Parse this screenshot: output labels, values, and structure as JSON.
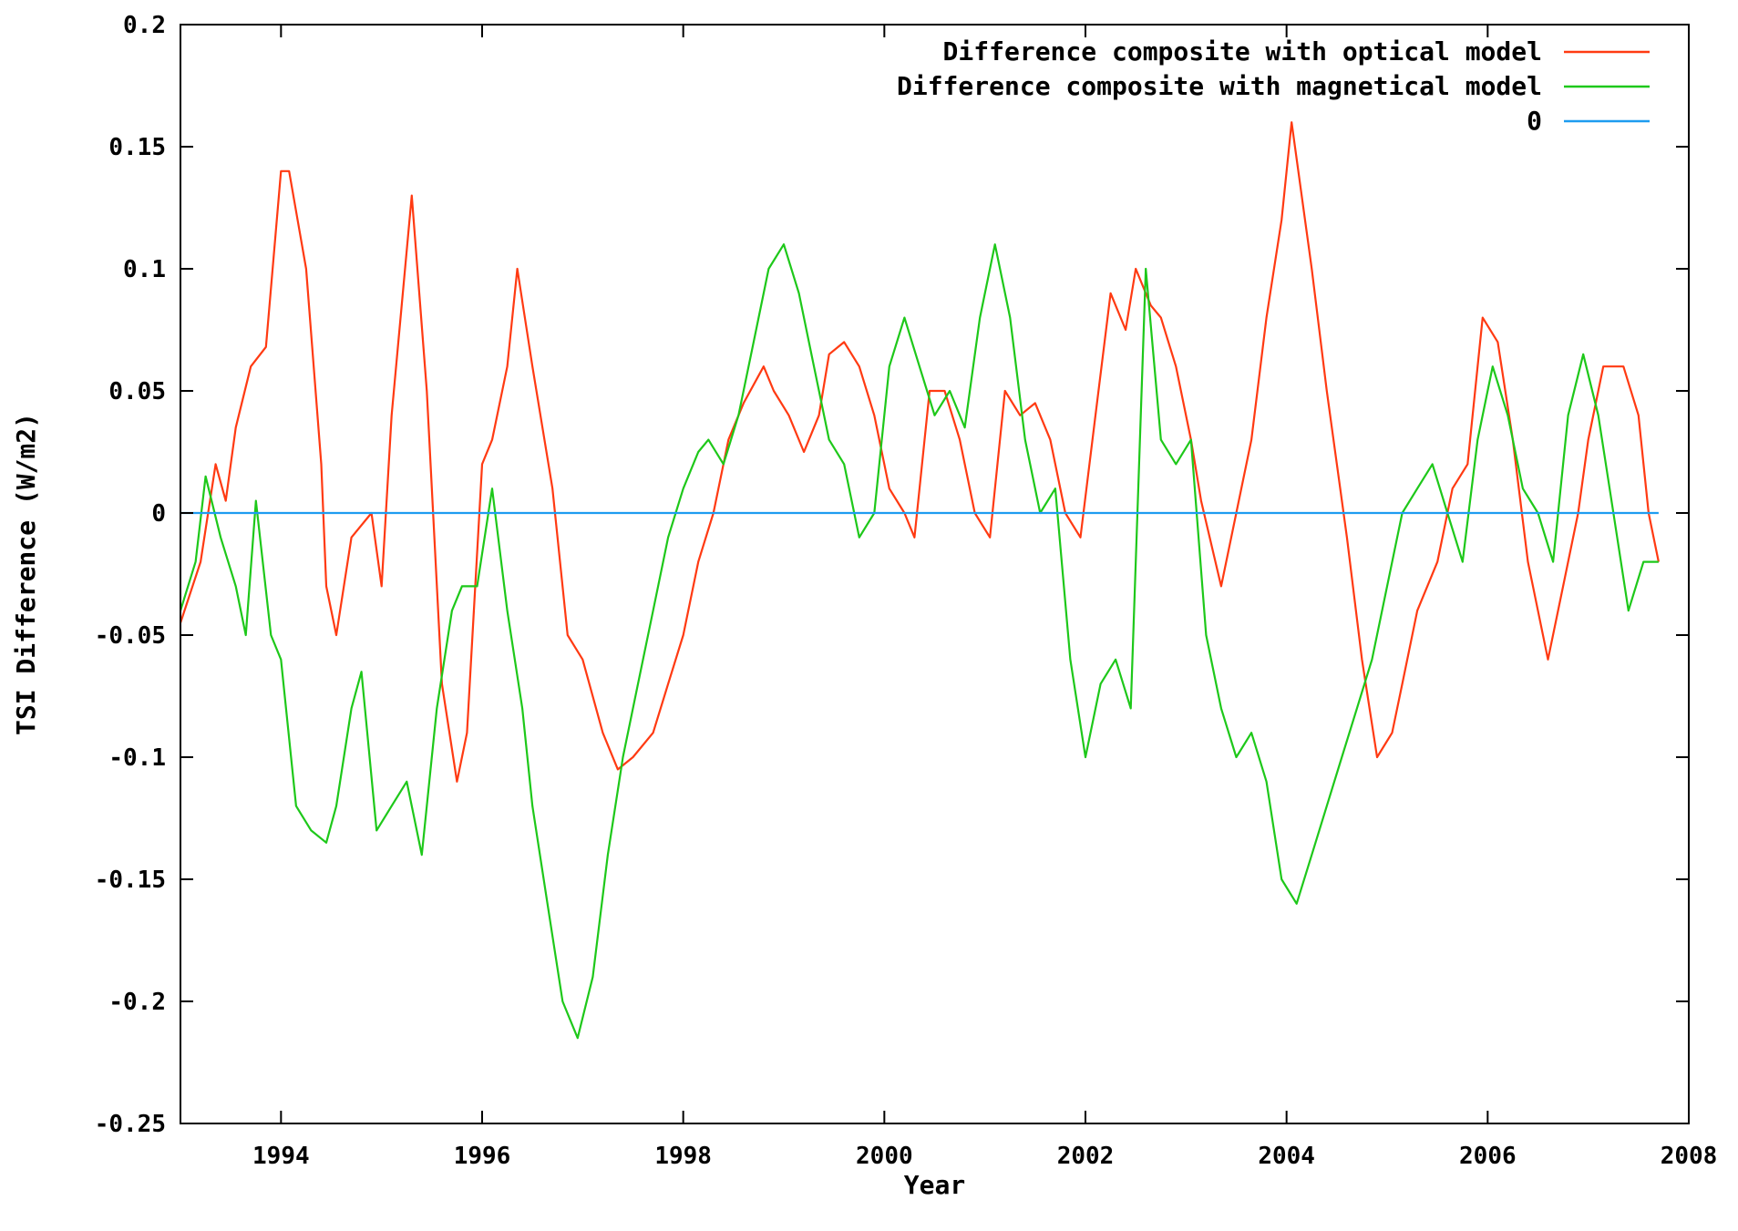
{
  "chart_data": {
    "type": "line",
    "title": "",
    "xlabel": "Year",
    "ylabel": "TSI Difference (W/m2)",
    "xlim": [
      1993,
      2008
    ],
    "ylim": [
      -0.25,
      0.2
    ],
    "grid": false,
    "legend_position": "top-right",
    "x_ticks": [
      1994,
      1996,
      1998,
      2000,
      2002,
      2004,
      2006,
      2008
    ],
    "x_tick_labels": [
      "1994",
      "1996",
      "1998",
      "2000",
      "2002",
      "2004",
      "2006",
      "2008"
    ],
    "y_ticks": [
      -0.25,
      -0.2,
      -0.15,
      -0.1,
      -0.05,
      0,
      0.05,
      0.1,
      0.15,
      0.2
    ],
    "y_tick_labels": [
      "-0.25",
      "-0.2",
      "-0.15",
      "-0.1",
      "-0.05",
      "0",
      "0.05",
      "0.1",
      "0.15",
      "0.2"
    ],
    "series": [
      {
        "name": "Difference composite with optical model",
        "color": "#ff3a12",
        "x": [
          1993.0,
          1993.2,
          1993.35,
          1993.45,
          1993.55,
          1993.7,
          1993.85,
          1994.0,
          1994.08,
          1994.25,
          1994.4,
          1994.45,
          1994.55,
          1994.7,
          1994.9,
          1995.0,
          1995.1,
          1995.3,
          1995.45,
          1995.6,
          1995.75,
          1995.85,
          1996.0,
          1996.1,
          1996.25,
          1996.35,
          1996.5,
          1996.7,
          1996.85,
          1997.0,
          1997.2,
          1997.35,
          1997.5,
          1997.7,
          1997.85,
          1998.0,
          1998.15,
          1998.3,
          1998.45,
          1998.6,
          1998.8,
          1998.9,
          1999.05,
          1999.2,
          1999.35,
          1999.45,
          1999.6,
          1999.75,
          1999.9,
          2000.05,
          2000.2,
          2000.3,
          2000.45,
          2000.6,
          2000.75,
          2000.9,
          2001.05,
          2001.2,
          2001.35,
          2001.5,
          2001.65,
          2001.8,
          2001.95,
          2002.1,
          2002.25,
          2002.4,
          2002.5,
          2002.65,
          2002.75,
          2002.9,
          2003.05,
          2003.15,
          2003.35,
          2003.5,
          2003.65,
          2003.8,
          2003.95,
          2004.05,
          2004.25,
          2004.4,
          2004.6,
          2004.75,
          2004.9,
          2005.05,
          2005.15,
          2005.3,
          2005.5,
          2005.65,
          2005.8,
          2005.95,
          2006.1,
          2006.25,
          2006.4,
          2006.5,
          2006.6,
          2006.75,
          2006.9,
          2007.0,
          2007.15,
          2007.35,
          2007.5,
          2007.6,
          2007.7
        ],
        "y": [
          -0.045,
          -0.02,
          0.02,
          0.005,
          0.035,
          0.06,
          0.068,
          0.14,
          0.14,
          0.1,
          0.02,
          -0.03,
          -0.05,
          -0.01,
          0.0,
          -0.03,
          0.04,
          0.13,
          0.05,
          -0.07,
          -0.11,
          -0.09,
          0.02,
          0.03,
          0.06,
          0.1,
          0.06,
          0.01,
          -0.05,
          -0.06,
          -0.09,
          -0.105,
          -0.1,
          -0.09,
          -0.07,
          -0.05,
          -0.02,
          0.0,
          0.03,
          0.045,
          0.06,
          0.05,
          0.04,
          0.025,
          0.04,
          0.065,
          0.07,
          0.06,
          0.04,
          0.01,
          0.0,
          -0.01,
          0.05,
          0.05,
          0.03,
          0.0,
          -0.01,
          0.05,
          0.04,
          0.045,
          0.03,
          0.0,
          -0.01,
          0.04,
          0.09,
          0.075,
          0.1,
          0.085,
          0.08,
          0.06,
          0.03,
          0.005,
          -0.03,
          0.0,
          0.03,
          0.08,
          0.12,
          0.16,
          0.1,
          0.05,
          -0.01,
          -0.06,
          -0.1,
          -0.09,
          -0.07,
          -0.04,
          -0.02,
          0.01,
          0.02,
          0.08,
          0.07,
          0.03,
          -0.02,
          -0.04,
          -0.06,
          -0.03,
          0.0,
          0.03,
          0.06,
          0.06,
          0.04,
          0.0,
          -0.02
        ],
        "note_values": []
      },
      {
        "name": "Difference composite with magnetical model",
        "color": "#1ec81a",
        "x": [
          1993.0,
          1993.15,
          1993.25,
          1993.4,
          1993.55,
          1993.65,
          1993.75,
          1993.9,
          1994.0,
          1994.15,
          1994.3,
          1994.45,
          1994.55,
          1994.7,
          1994.8,
          1994.95,
          1995.1,
          1995.25,
          1995.4,
          1995.55,
          1995.7,
          1995.8,
          1995.95,
          1996.1,
          1996.25,
          1996.4,
          1996.5,
          1996.65,
          1996.8,
          1996.95,
          1997.1,
          1997.25,
          1997.4,
          1997.55,
          1997.7,
          1997.85,
          1998.0,
          1998.15,
          1998.25,
          1998.4,
          1998.55,
          1998.7,
          1998.85,
          1999.0,
          1999.15,
          1999.3,
          1999.45,
          1999.6,
          1999.75,
          1999.9,
          2000.05,
          2000.2,
          2000.35,
          2000.5,
          2000.65,
          2000.8,
          2000.95,
          2001.1,
          2001.25,
          2001.4,
          2001.55,
          2001.7,
          2001.85,
          2002.0,
          2002.15,
          2002.3,
          2002.45,
          2002.6,
          2002.75,
          2002.9,
          2003.05,
          2003.2,
          2003.35,
          2003.5,
          2003.65,
          2003.8,
          2003.95,
          2004.1,
          2004.25,
          2004.4,
          2004.55,
          2004.7,
          2004.85,
          2005.0,
          2005.15,
          2005.3,
          2005.45,
          2005.6,
          2005.75,
          2005.9,
          2006.05,
          2006.2,
          2006.35,
          2006.5,
          2006.65,
          2006.8,
          2006.95,
          2007.1,
          2007.25,
          2007.4,
          2007.55,
          2007.7
        ],
        "y": [
          -0.04,
          -0.02,
          0.015,
          -0.01,
          -0.03,
          -0.05,
          0.005,
          -0.05,
          -0.06,
          -0.12,
          -0.13,
          -0.135,
          -0.12,
          -0.08,
          -0.065,
          -0.13,
          -0.12,
          -0.11,
          -0.14,
          -0.08,
          -0.04,
          -0.03,
          -0.03,
          0.01,
          -0.04,
          -0.08,
          -0.12,
          -0.16,
          -0.2,
          -0.215,
          -0.19,
          -0.14,
          -0.1,
          -0.07,
          -0.04,
          -0.01,
          0.01,
          0.025,
          0.03,
          0.02,
          0.04,
          0.07,
          0.1,
          0.11,
          0.09,
          0.06,
          0.03,
          0.02,
          -0.01,
          0.0,
          0.06,
          0.08,
          0.06,
          0.04,
          0.05,
          0.035,
          0.08,
          0.11,
          0.08,
          0.03,
          0.0,
          0.01,
          -0.06,
          -0.1,
          -0.07,
          -0.06,
          -0.08,
          0.1,
          0.03,
          0.02,
          0.03,
          -0.05,
          -0.08,
          -0.1,
          -0.09,
          -0.11,
          -0.15,
          -0.16,
          -0.14,
          -0.12,
          -0.1,
          -0.08,
          -0.06,
          -0.03,
          0.0,
          0.01,
          0.02,
          0.0,
          -0.02,
          0.03,
          0.06,
          0.04,
          0.01,
          0.0,
          -0.02,
          0.04,
          0.065,
          0.04,
          0.0,
          -0.04,
          -0.02,
          -0.02
        ],
        "note_values": []
      },
      {
        "name": "0",
        "color": "#1e9cf0",
        "x": [
          1993.0,
          2007.7
        ],
        "y": [
          0,
          0
        ],
        "note_values": []
      }
    ]
  }
}
